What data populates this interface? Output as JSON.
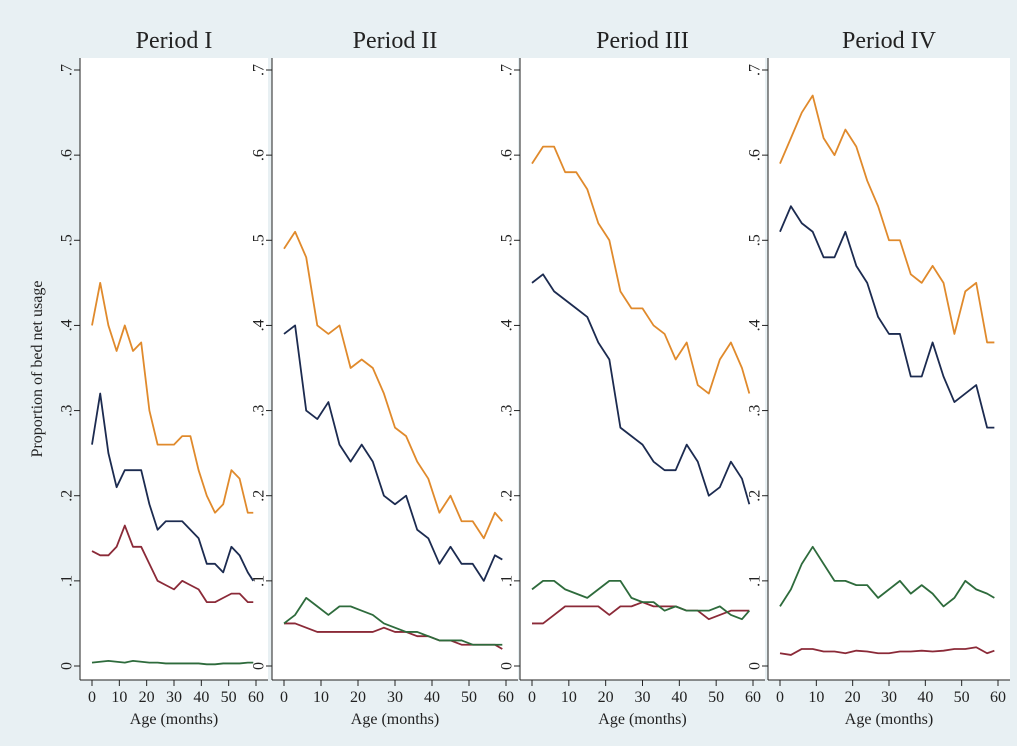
{
  "chart_data": [
    {
      "type": "line",
      "title": "Period  I",
      "x_label": "Age (months)",
      "y_label": "Proportion of bed net usage",
      "x": [
        0,
        3,
        6,
        9,
        12,
        15,
        18,
        21,
        24,
        27,
        30,
        33,
        36,
        39,
        42,
        45,
        48,
        51,
        54,
        57,
        59
      ],
      "xlim": [
        0,
        60
      ],
      "xticks": [
        0,
        10,
        20,
        30,
        40,
        50,
        60
      ],
      "ylim": [
        0,
        0.7
      ],
      "yticks": [
        0,
        {
          "value": 0.1,
          "label": ".1"
        },
        {
          "value": 0.2,
          "label": ".2"
        },
        {
          "value": 0.3,
          "label": ".3"
        },
        {
          "value": 0.4,
          "label": ".4"
        },
        {
          "value": 0.5,
          "label": ".5"
        },
        {
          "value": 0.6,
          "label": ".6"
        },
        {
          "value": 0.7,
          "label": ".7"
        }
      ],
      "series": [
        {
          "color": "#e08a2c",
          "values": [
            0.4,
            0.45,
            0.4,
            0.37,
            0.4,
            0.37,
            0.38,
            0.3,
            0.26,
            0.26,
            0.26,
            0.27,
            0.27,
            0.23,
            0.2,
            0.18,
            0.19,
            0.23,
            0.22,
            0.18,
            0.18
          ]
        },
        {
          "color": "#1c2b50",
          "values": [
            0.26,
            0.32,
            0.25,
            0.21,
            0.23,
            0.23,
            0.23,
            0.19,
            0.16,
            0.17,
            0.17,
            0.17,
            0.16,
            0.15,
            0.12,
            0.12,
            0.11,
            0.14,
            0.13,
            0.11,
            0.1
          ]
        },
        {
          "color": "#8b2a38",
          "values": [
            0.135,
            0.13,
            0.13,
            0.14,
            0.165,
            0.14,
            0.14,
            0.12,
            0.1,
            0.095,
            0.09,
            0.1,
            0.095,
            0.09,
            0.075,
            0.075,
            0.08,
            0.085,
            0.085,
            0.075,
            0.075
          ]
        },
        {
          "color": "#2e6b3c",
          "values": [
            0.004,
            0.005,
            0.006,
            0.005,
            0.004,
            0.006,
            0.005,
            0.004,
            0.004,
            0.003,
            0.003,
            0.003,
            0.003,
            0.003,
            0.002,
            0.002,
            0.003,
            0.003,
            0.003,
            0.004,
            0.004
          ]
        }
      ]
    },
    {
      "type": "line",
      "title": "Period II",
      "x_label": "Age (months)",
      "x": [
        0,
        3,
        6,
        9,
        12,
        15,
        18,
        21,
        24,
        27,
        30,
        33,
        36,
        39,
        42,
        45,
        48,
        51,
        54,
        57,
        59
      ],
      "xlim": [
        0,
        60
      ],
      "xticks": [
        0,
        10,
        20,
        30,
        40,
        50,
        60
      ],
      "ylim": [
        0,
        0.7
      ],
      "yticks": [
        0,
        {
          "value": 0.1,
          "label": ".1"
        },
        {
          "value": 0.2,
          "label": ".2"
        },
        {
          "value": 0.3,
          "label": ".3"
        },
        {
          "value": 0.4,
          "label": ".4"
        },
        {
          "value": 0.5,
          "label": ".5"
        },
        {
          "value": 0.6,
          "label": ".6"
        },
        {
          "value": 0.7,
          "label": ".7"
        }
      ],
      "series": [
        {
          "color": "#e08a2c",
          "values": [
            0.49,
            0.51,
            0.48,
            0.4,
            0.39,
            0.4,
            0.35,
            0.36,
            0.35,
            0.32,
            0.28,
            0.27,
            0.24,
            0.22,
            0.18,
            0.2,
            0.17,
            0.17,
            0.15,
            0.18,
            0.17
          ]
        },
        {
          "color": "#1c2b50",
          "values": [
            0.39,
            0.4,
            0.3,
            0.29,
            0.31,
            0.26,
            0.24,
            0.26,
            0.24,
            0.2,
            0.19,
            0.2,
            0.16,
            0.15,
            0.12,
            0.14,
            0.12,
            0.12,
            0.1,
            0.13,
            0.125
          ]
        },
        {
          "color": "#8b2a38",
          "values": [
            0.05,
            0.05,
            0.045,
            0.04,
            0.04,
            0.04,
            0.04,
            0.04,
            0.04,
            0.045,
            0.04,
            0.04,
            0.035,
            0.035,
            0.03,
            0.03,
            0.025,
            0.025,
            0.025,
            0.025,
            0.02
          ]
        },
        {
          "color": "#2e6b3c",
          "values": [
            0.05,
            0.06,
            0.08,
            0.07,
            0.06,
            0.07,
            0.07,
            0.065,
            0.06,
            0.05,
            0.045,
            0.04,
            0.04,
            0.035,
            0.03,
            0.03,
            0.03,
            0.025,
            0.025,
            0.025,
            0.025
          ]
        }
      ]
    },
    {
      "type": "line",
      "title": "Period III",
      "x_label": "Age (months)",
      "x": [
        0,
        3,
        6,
        9,
        12,
        15,
        18,
        21,
        24,
        27,
        30,
        33,
        36,
        39,
        42,
        45,
        48,
        51,
        54,
        57,
        59
      ],
      "xlim": [
        0,
        60
      ],
      "xticks": [
        0,
        10,
        20,
        30,
        40,
        50,
        60
      ],
      "ylim": [
        0,
        0.7
      ],
      "yticks": [
        0,
        {
          "value": 0.1,
          "label": ".1"
        },
        {
          "value": 0.2,
          "label": ".2"
        },
        {
          "value": 0.3,
          "label": ".3"
        },
        {
          "value": 0.4,
          "label": ".4"
        },
        {
          "value": 0.5,
          "label": ".5"
        },
        {
          "value": 0.6,
          "label": ".6"
        },
        {
          "value": 0.7,
          "label": ".7"
        }
      ],
      "series": [
        {
          "color": "#e08a2c",
          "values": [
            0.59,
            0.61,
            0.61,
            0.58,
            0.58,
            0.56,
            0.52,
            0.5,
            0.44,
            0.42,
            0.42,
            0.4,
            0.39,
            0.36,
            0.38,
            0.33,
            0.32,
            0.36,
            0.38,
            0.35,
            0.32
          ]
        },
        {
          "color": "#1c2b50",
          "values": [
            0.45,
            0.46,
            0.44,
            0.43,
            0.42,
            0.41,
            0.38,
            0.36,
            0.28,
            0.27,
            0.26,
            0.24,
            0.23,
            0.23,
            0.26,
            0.24,
            0.2,
            0.21,
            0.24,
            0.22,
            0.19
          ]
        },
        {
          "color": "#8b2a38",
          "values": [
            0.05,
            0.05,
            0.06,
            0.07,
            0.07,
            0.07,
            0.07,
            0.06,
            0.07,
            0.07,
            0.075,
            0.07,
            0.07,
            0.07,
            0.065,
            0.065,
            0.055,
            0.06,
            0.065,
            0.065,
            0.065
          ]
        },
        {
          "color": "#2e6b3c",
          "values": [
            0.09,
            0.1,
            0.1,
            0.09,
            0.085,
            0.08,
            0.09,
            0.1,
            0.1,
            0.08,
            0.075,
            0.075,
            0.065,
            0.07,
            0.065,
            0.065,
            0.065,
            0.07,
            0.06,
            0.055,
            0.065
          ]
        }
      ]
    },
    {
      "type": "line",
      "title": "Period IV",
      "x_label": "Age (months)",
      "x": [
        0,
        3,
        6,
        9,
        12,
        15,
        18,
        21,
        24,
        27,
        30,
        33,
        36,
        39,
        42,
        45,
        48,
        51,
        54,
        57,
        59
      ],
      "xlim": [
        0,
        60
      ],
      "xticks": [
        0,
        10,
        20,
        30,
        40,
        50,
        60
      ],
      "ylim": [
        0,
        0.7
      ],
      "yticks": [
        0,
        {
          "value": 0.1,
          "label": ".1"
        },
        {
          "value": 0.2,
          "label": ".2"
        },
        {
          "value": 0.3,
          "label": ".3"
        },
        {
          "value": 0.4,
          "label": ".4"
        },
        {
          "value": 0.5,
          "label": ".5"
        },
        {
          "value": 0.6,
          "label": ".6"
        },
        {
          "value": 0.7,
          "label": ".7"
        }
      ],
      "series": [
        {
          "color": "#e08a2c",
          "values": [
            0.59,
            0.62,
            0.65,
            0.67,
            0.62,
            0.6,
            0.63,
            0.61,
            0.57,
            0.54,
            0.5,
            0.5,
            0.46,
            0.45,
            0.47,
            0.45,
            0.39,
            0.44,
            0.45,
            0.38,
            0.38
          ]
        },
        {
          "color": "#1c2b50",
          "values": [
            0.51,
            0.54,
            0.52,
            0.51,
            0.48,
            0.48,
            0.51,
            0.47,
            0.45,
            0.41,
            0.39,
            0.39,
            0.34,
            0.34,
            0.38,
            0.34,
            0.31,
            0.32,
            0.33,
            0.28,
            0.28
          ]
        },
        {
          "color": "#8b2a38",
          "values": [
            0.015,
            0.013,
            0.02,
            0.02,
            0.017,
            0.017,
            0.015,
            0.018,
            0.017,
            0.015,
            0.015,
            0.017,
            0.017,
            0.018,
            0.017,
            0.018,
            0.02,
            0.02,
            0.022,
            0.015,
            0.018
          ]
        },
        {
          "color": "#2e6b3c",
          "values": [
            0.07,
            0.09,
            0.12,
            0.14,
            0.12,
            0.1,
            0.1,
            0.095,
            0.095,
            0.08,
            0.09,
            0.1,
            0.085,
            0.095,
            0.085,
            0.07,
            0.08,
            0.1,
            0.09,
            0.085,
            0.08
          ]
        }
      ]
    }
  ]
}
